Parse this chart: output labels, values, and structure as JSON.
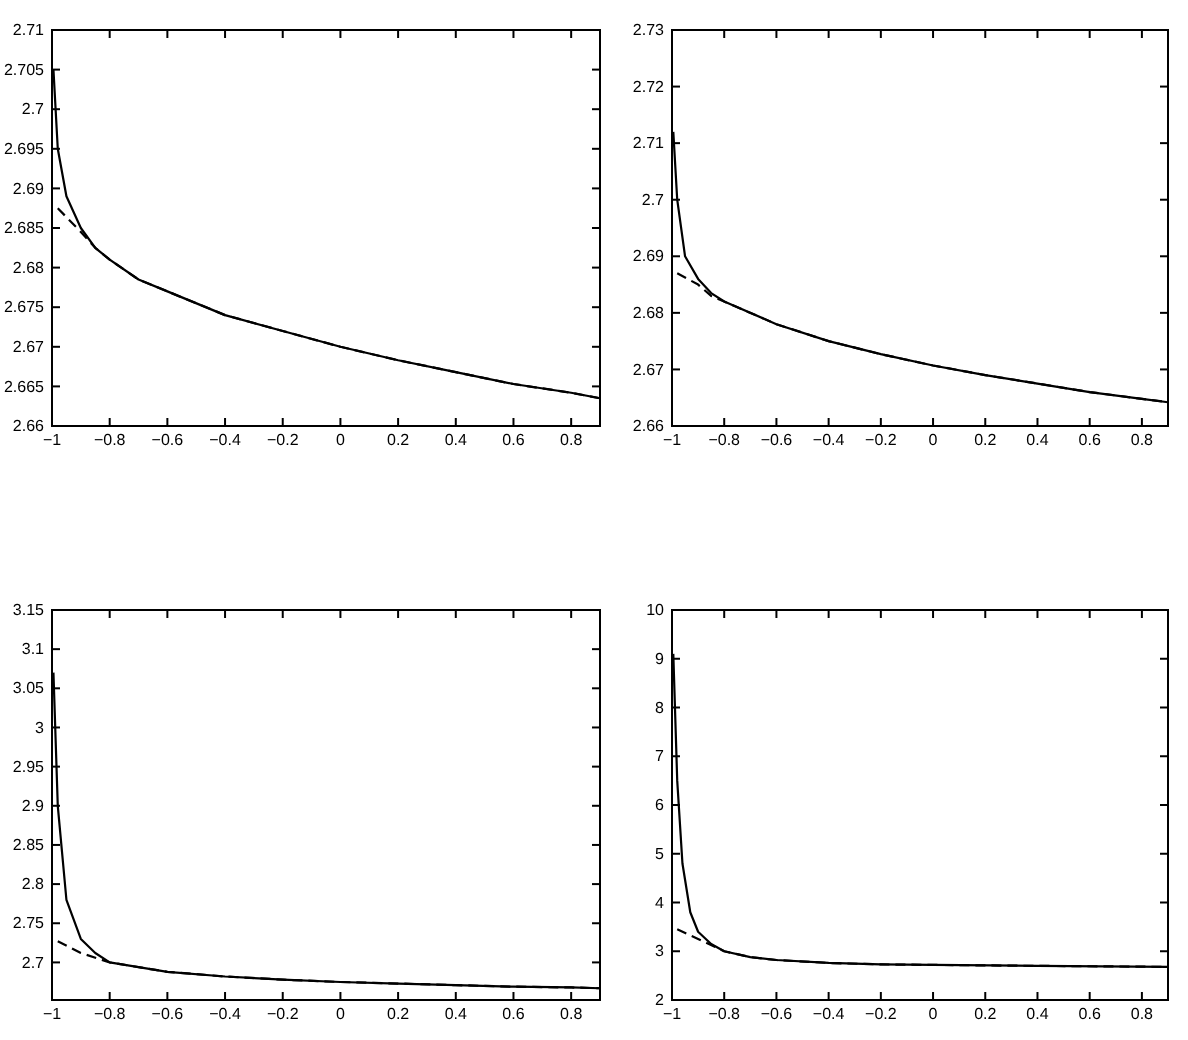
{
  "chart_data": [
    {
      "type": "line",
      "xlim": [
        -1,
        0.9
      ],
      "xticks": [
        -1,
        -0.8,
        -0.6,
        -0.4,
        -0.2,
        0,
        0.2,
        0.4,
        0.6,
        0.8
      ],
      "ylim": [
        2.66,
        2.71
      ],
      "yticks": [
        2.66,
        2.665,
        2.67,
        2.675,
        2.68,
        2.685,
        2.69,
        2.695,
        2.7,
        2.705,
        2.71
      ],
      "series": [
        {
          "color": "#000000",
          "line_style": "solid",
          "x": [
            -0.995,
            -0.98,
            -0.95,
            -0.9,
            -0.85,
            -0.8,
            -0.7,
            -0.6,
            -0.4,
            -0.2,
            0,
            0.2,
            0.4,
            0.6,
            0.8,
            0.9
          ],
          "values": [
            2.705,
            2.695,
            2.689,
            2.685,
            2.6825,
            2.681,
            2.6785,
            2.677,
            2.674,
            2.672,
            2.67,
            2.6683,
            2.6668,
            2.6653,
            2.6642,
            2.6635
          ]
        },
        {
          "color": "#000000",
          "line_style": "dashed",
          "x": [
            -0.98,
            -0.9,
            -0.85,
            -0.8,
            -0.7,
            -0.6,
            -0.4,
            -0.2,
            0,
            0.2,
            0.4,
            0.6,
            0.8,
            0.9
          ],
          "values": [
            2.6875,
            2.6845,
            2.6825,
            2.681,
            2.6785,
            2.677,
            2.674,
            2.672,
            2.67,
            2.6683,
            2.6668,
            2.6653,
            2.6642,
            2.6635
          ]
        }
      ]
    },
    {
      "type": "line",
      "xlim": [
        -1,
        0.9
      ],
      "xticks": [
        -1,
        -0.8,
        -0.6,
        -0.4,
        -0.2,
        0,
        0.2,
        0.4,
        0.6,
        0.8
      ],
      "ylim": [
        2.66,
        2.73
      ],
      "yticks": [
        2.66,
        2.67,
        2.68,
        2.69,
        2.7,
        2.71,
        2.72,
        2.73
      ],
      "series": [
        {
          "color": "#000000",
          "line_style": "solid",
          "x": [
            -0.995,
            -0.98,
            -0.95,
            -0.9,
            -0.85,
            -0.8,
            -0.6,
            -0.4,
            -0.2,
            0,
            0.2,
            0.4,
            0.6,
            0.8,
            0.9
          ],
          "values": [
            2.712,
            2.7,
            2.69,
            2.686,
            2.6835,
            2.682,
            2.678,
            2.675,
            2.6727,
            2.6707,
            2.669,
            2.6675,
            2.666,
            2.6648,
            2.6642
          ]
        },
        {
          "color": "#000000",
          "line_style": "dashed",
          "x": [
            -0.98,
            -0.9,
            -0.85,
            -0.8,
            -0.6,
            -0.4,
            -0.2,
            0,
            0.2,
            0.4,
            0.6,
            0.8,
            0.9
          ],
          "values": [
            2.687,
            2.685,
            2.683,
            2.682,
            2.678,
            2.675,
            2.6727,
            2.6707,
            2.669,
            2.6675,
            2.666,
            2.6648,
            2.6642
          ]
        }
      ]
    },
    {
      "type": "line",
      "xlim": [
        -1,
        0.9
      ],
      "xticks": [
        -1,
        -0.8,
        -0.6,
        -0.4,
        -0.2,
        0,
        0.2,
        0.4,
        0.6,
        0.8
      ],
      "ylim": [
        2.652,
        3.15
      ],
      "yticks": [
        2.7,
        2.75,
        2.8,
        2.85,
        2.9,
        2.95,
        3,
        3.05,
        3.1,
        3.15
      ],
      "series": [
        {
          "color": "#000000",
          "line_style": "solid",
          "x": [
            -0.995,
            -0.98,
            -0.95,
            -0.9,
            -0.85,
            -0.8,
            -0.6,
            -0.4,
            -0.2,
            0,
            0.2,
            0.4,
            0.6,
            0.8,
            0.9
          ],
          "values": [
            3.07,
            2.9,
            2.78,
            2.73,
            2.712,
            2.7,
            2.688,
            2.682,
            2.678,
            2.675,
            2.673,
            2.671,
            2.669,
            2.668,
            2.667
          ]
        },
        {
          "color": "#000000",
          "line_style": "dashed",
          "x": [
            -0.98,
            -0.9,
            -0.8,
            -0.6,
            -0.4,
            -0.2,
            0,
            0.2,
            0.4,
            0.6,
            0.8,
            0.9
          ],
          "values": [
            2.727,
            2.712,
            2.7,
            2.688,
            2.682,
            2.678,
            2.675,
            2.673,
            2.671,
            2.669,
            2.668,
            2.667
          ]
        }
      ]
    },
    {
      "type": "line",
      "xlim": [
        -1,
        0.9
      ],
      "xticks": [
        -1,
        -0.8,
        -0.6,
        -0.4,
        -0.2,
        0,
        0.2,
        0.4,
        0.6,
        0.8
      ],
      "ylim": [
        2,
        10
      ],
      "yticks": [
        2,
        3,
        4,
        5,
        6,
        7,
        8,
        9,
        10
      ],
      "series": [
        {
          "color": "#000000",
          "line_style": "solid",
          "x": [
            -0.995,
            -0.98,
            -0.96,
            -0.93,
            -0.9,
            -0.85,
            -0.8,
            -0.7,
            -0.6,
            -0.4,
            -0.2,
            0,
            0.4,
            0.9
          ],
          "values": [
            9.1,
            6.5,
            4.8,
            3.8,
            3.4,
            3.15,
            3,
            2.88,
            2.82,
            2.76,
            2.73,
            2.72,
            2.7,
            2.68
          ]
        },
        {
          "color": "#000000",
          "line_style": "dashed",
          "x": [
            -0.98,
            -0.9,
            -0.8,
            -0.7,
            -0.6,
            -0.4,
            -0.2,
            0,
            0.4,
            0.9
          ],
          "values": [
            3.45,
            3.25,
            3,
            2.88,
            2.82,
            2.76,
            2.73,
            2.72,
            2.7,
            2.68
          ]
        }
      ]
    }
  ]
}
